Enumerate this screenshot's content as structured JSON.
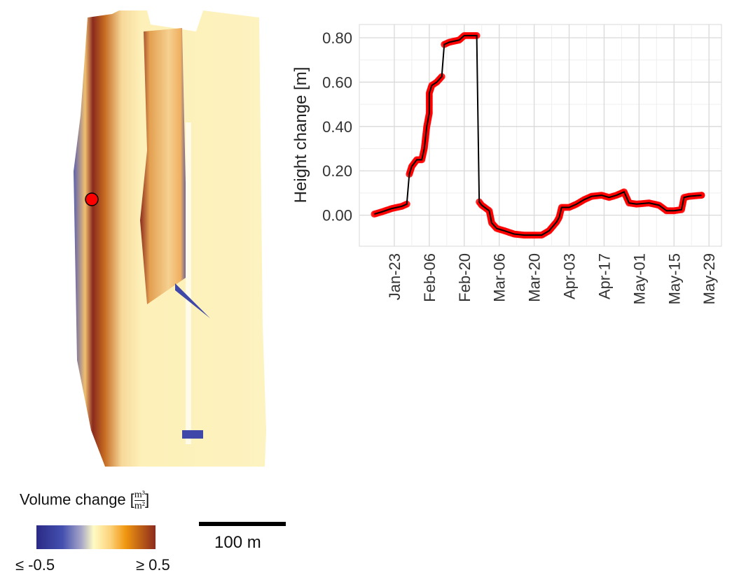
{
  "map": {
    "marker_color": "#ff0000",
    "legend": {
      "title": "Volume change [",
      "unit_numerator": "m³",
      "unit_denominator": "m²",
      "title_close": "]",
      "min_label": "≤ -0.5",
      "max_label": "≥ 0.5",
      "colors": [
        "#2b2a86",
        "#4450b0",
        "#fffbc4",
        "#f0960f",
        "#8b2a1e"
      ]
    },
    "scale_bar_label": "100 m"
  },
  "chart_data": {
    "type": "line",
    "ylabel": "Height change [m]",
    "xlabel": "",
    "ylim": [
      -0.14,
      0.86
    ],
    "xlim": [
      "01-09",
      "06-03"
    ],
    "yticks": [
      "0.00",
      "0.20",
      "0.40",
      "0.60",
      "0.80"
    ],
    "ytick_values": [
      0,
      0.2,
      0.4,
      0.6,
      0.8
    ],
    "xticks": [
      "Jan-23",
      "Feb-06",
      "Feb-20",
      "Mar-06",
      "Mar-20",
      "Apr-03",
      "Apr-17",
      "May-01",
      "May-15",
      "May-29"
    ],
    "xtick_dates": [
      "01-23",
      "02-06",
      "02-20",
      "03-06",
      "03-20",
      "04-03",
      "04-17",
      "05-01",
      "05-15",
      "05-29"
    ],
    "grid": true,
    "line_color": "#000000",
    "point_color": "#ff0000",
    "series": [
      {
        "x": [
          "01-15",
          "01-18",
          "01-22",
          "01-26",
          "01-28",
          "01-29",
          "01-30",
          "02-01",
          "02-03",
          "02-04",
          "02-05",
          "02-06",
          "02-06",
          "02-07",
          "02-09",
          "02-11",
          "02-12",
          "02-14",
          "02-18",
          "02-20",
          "02-23",
          "02-25",
          "02-26",
          "02-27",
          "03-02",
          "03-03",
          "03-05",
          "03-08",
          "03-12",
          "03-16",
          "03-20",
          "03-23",
          "03-26",
          "03-29",
          "03-30",
          "03-31",
          "04-03",
          "04-06",
          "04-09",
          "04-12",
          "04-16",
          "04-19",
          "04-22",
          "04-25",
          "04-27",
          "04-30",
          "05-05",
          "05-09",
          "05-12",
          "05-15",
          "05-18",
          "05-19",
          "05-21",
          "05-26"
        ],
        "y": [
          0.005,
          0.015,
          0.03,
          0.04,
          0.05,
          0.185,
          0.22,
          0.25,
          0.25,
          0.3,
          0.4,
          0.46,
          0.55,
          0.585,
          0.6,
          0.625,
          0.77,
          0.78,
          0.79,
          0.81,
          0.81,
          0.81,
          0.06,
          0.045,
          0.02,
          -0.035,
          -0.06,
          -0.07,
          -0.085,
          -0.09,
          -0.09,
          -0.09,
          -0.07,
          -0.03,
          -0.01,
          0.035,
          0.035,
          0.05,
          0.07,
          0.085,
          0.09,
          0.08,
          0.09,
          0.105,
          0.055,
          0.05,
          0.055,
          0.045,
          0.02,
          0.02,
          0.025,
          0.08,
          0.085,
          0.09
        ]
      }
    ]
  }
}
